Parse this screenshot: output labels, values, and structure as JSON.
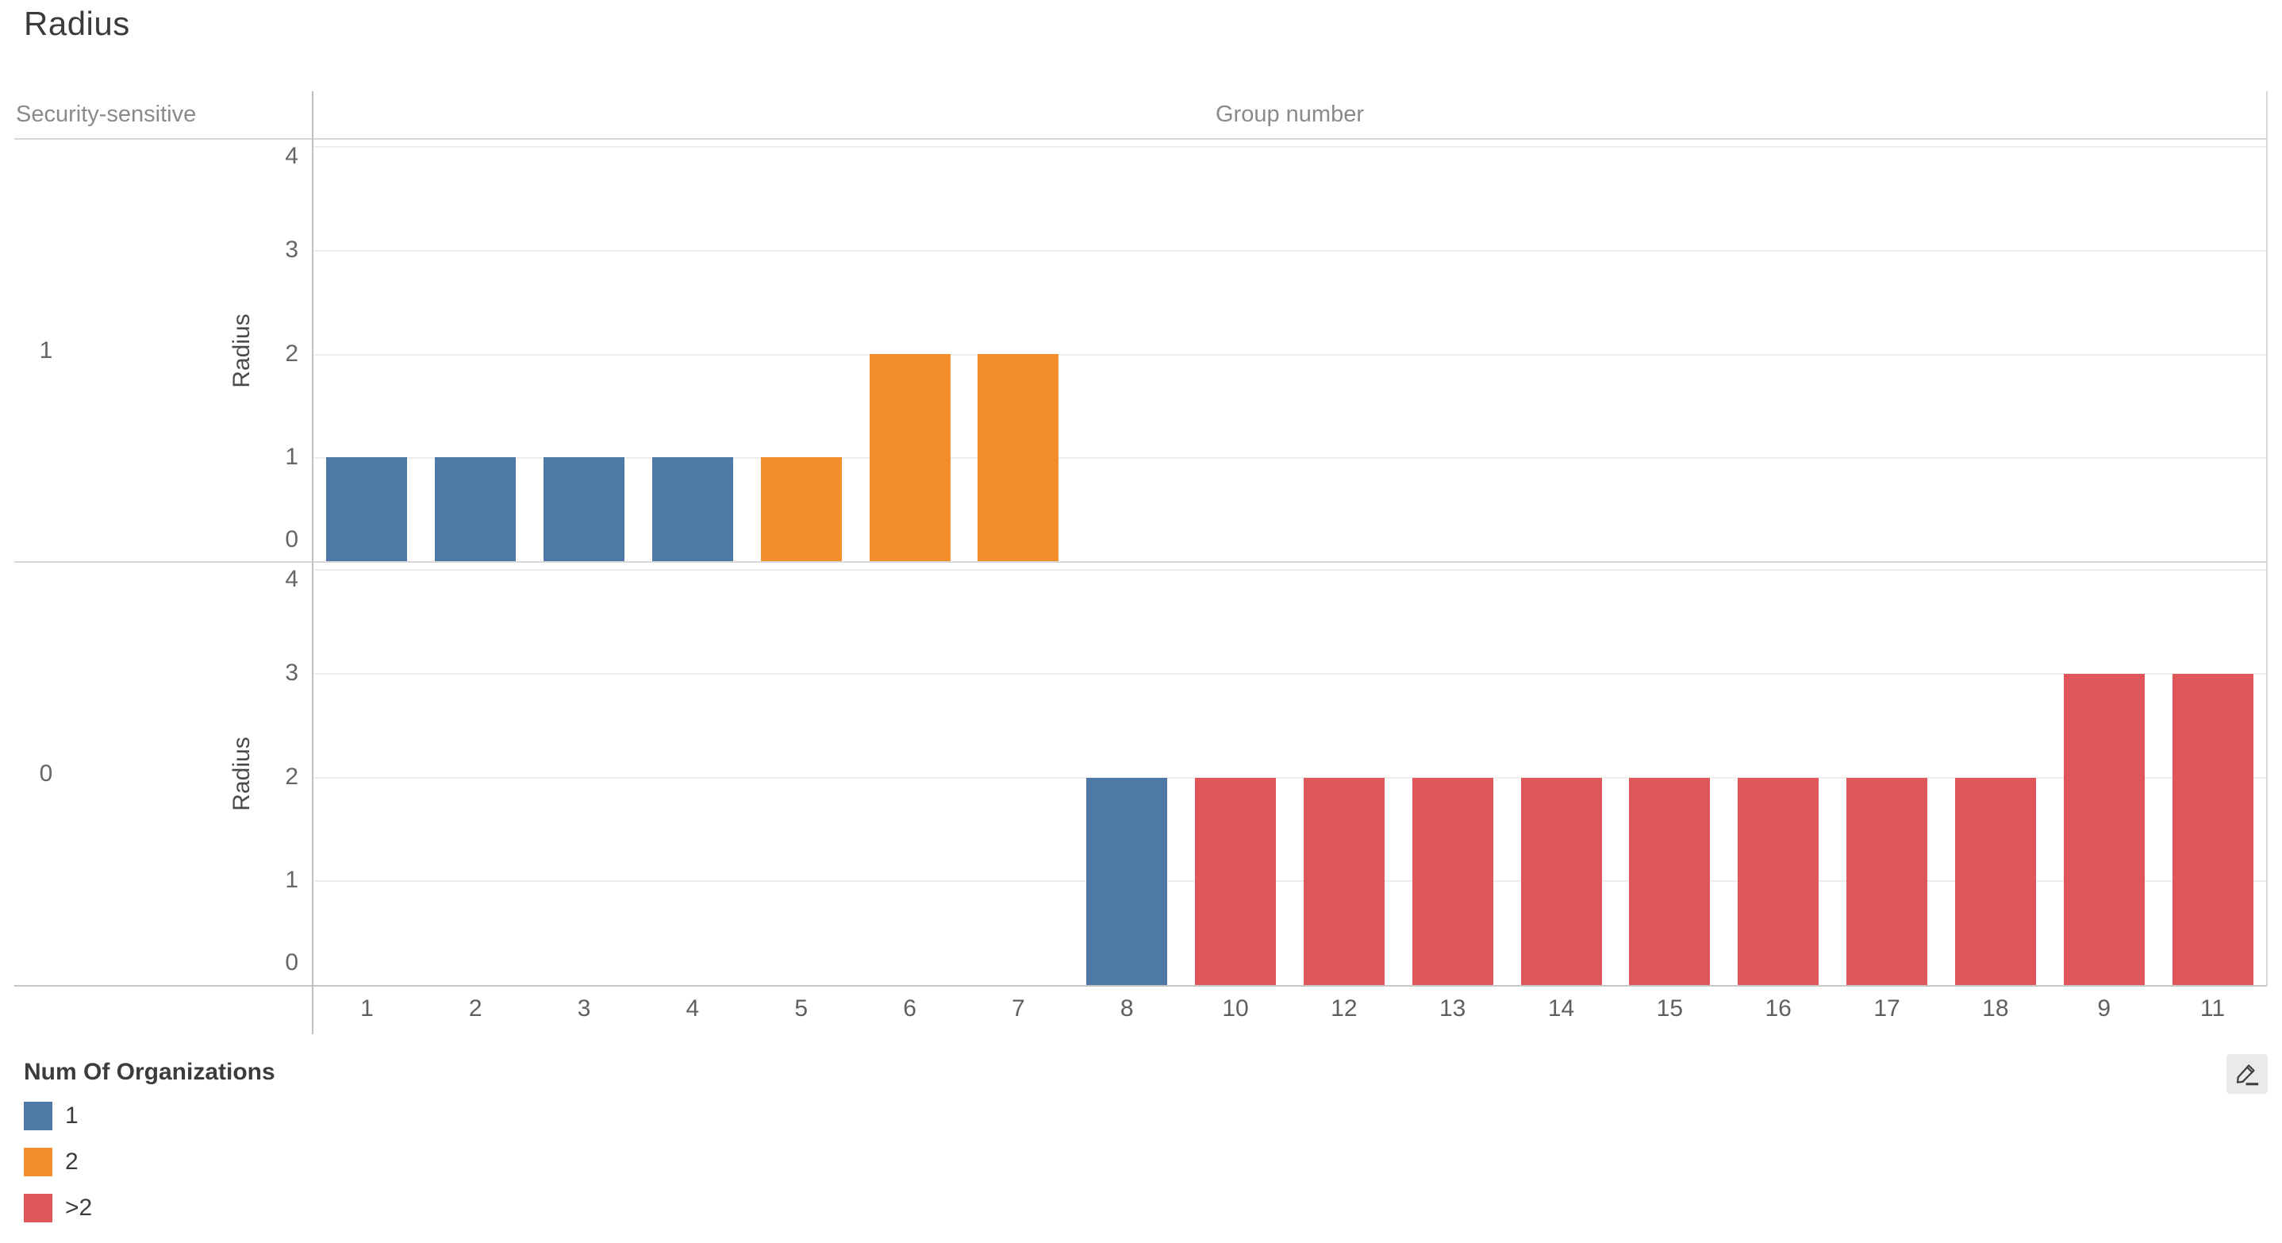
{
  "title": "Radius",
  "facet_column_header": "Security-sensitive",
  "x_axis_header": "Group number",
  "legend": {
    "title": "Num Of Organizations",
    "items": [
      {
        "label": "1",
        "color": "#4e79a7"
      },
      {
        "label": "2",
        "color": "#f28e2b"
      },
      {
        "label": ">2",
        "color": "#e15759"
      }
    ]
  },
  "icons": {
    "edit_pencil": "edit-pencil-icon"
  },
  "chart_data": {
    "type": "bar",
    "title": "Radius",
    "xlabel": "Group number",
    "ylabel": "Radius",
    "ylim": [
      0,
      4
    ],
    "yticks": [
      0,
      1,
      2,
      3,
      4
    ],
    "grid": true,
    "legend_position": "bottom-left",
    "legend_title": "Num Of Organizations",
    "facet_field": "Security-sensitive",
    "categories": [
      "1",
      "2",
      "3",
      "4",
      "5",
      "6",
      "7",
      "8",
      "10",
      "12",
      "13",
      "14",
      "15",
      "16",
      "17",
      "18",
      "9",
      "11"
    ],
    "series_color_map": {
      "1": "#4e79a7",
      "2": "#f28e2b",
      ">2": "#e15759"
    },
    "facets": [
      {
        "facet_label": "1",
        "values": [
          1,
          1,
          1,
          1,
          1,
          2,
          2,
          null,
          null,
          null,
          null,
          null,
          null,
          null,
          null,
          null,
          null,
          null
        ],
        "org_bucket": [
          "1",
          "1",
          "1",
          "1",
          "2",
          "2",
          "2",
          null,
          null,
          null,
          null,
          null,
          null,
          null,
          null,
          null,
          null,
          null
        ]
      },
      {
        "facet_label": "0",
        "values": [
          null,
          null,
          null,
          null,
          null,
          null,
          null,
          2,
          2,
          2,
          2,
          2,
          2,
          2,
          2,
          2,
          3,
          3
        ],
        "org_bucket": [
          null,
          null,
          null,
          null,
          null,
          null,
          null,
          "1",
          ">2",
          ">2",
          ">2",
          ">2",
          ">2",
          ">2",
          ">2",
          ">2",
          ">2",
          ">2"
        ]
      }
    ]
  }
}
